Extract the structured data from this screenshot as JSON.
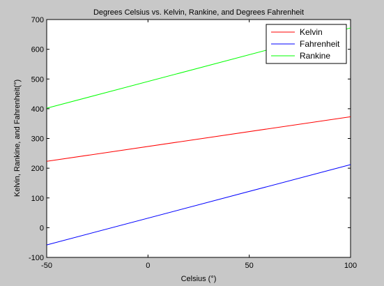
{
  "chart_data": {
    "type": "line",
    "title": "Degrees Celsius vs. Kelvin, Rankine, and Degrees Fahrenheit",
    "xlabel": "Celsius (°)",
    "ylabel": "Kelvin, Rankine, and Fahrenheit(°)",
    "xlim": [
      -50,
      100
    ],
    "ylim": [
      -100,
      700
    ],
    "xticks": [
      -50,
      0,
      50,
      100
    ],
    "yticks": [
      -100,
      0,
      100,
      200,
      300,
      400,
      500,
      600,
      700
    ],
    "grid": false,
    "legend_position": "top-right",
    "x": [
      -50,
      100
    ],
    "series": [
      {
        "name": "Kelvin",
        "values": [
          223.15,
          373.15
        ],
        "color": "#ff0000"
      },
      {
        "name": "Fahrenheit",
        "values": [
          -58,
          212
        ],
        "color": "#0000ff"
      },
      {
        "name": "Rankine",
        "values": [
          401.67,
          671.67
        ],
        "color": "#00ff00"
      }
    ]
  },
  "colors": {
    "figure_background": "#c8c8c8",
    "plot_background": "#ffffff",
    "axis": "#000000"
  }
}
